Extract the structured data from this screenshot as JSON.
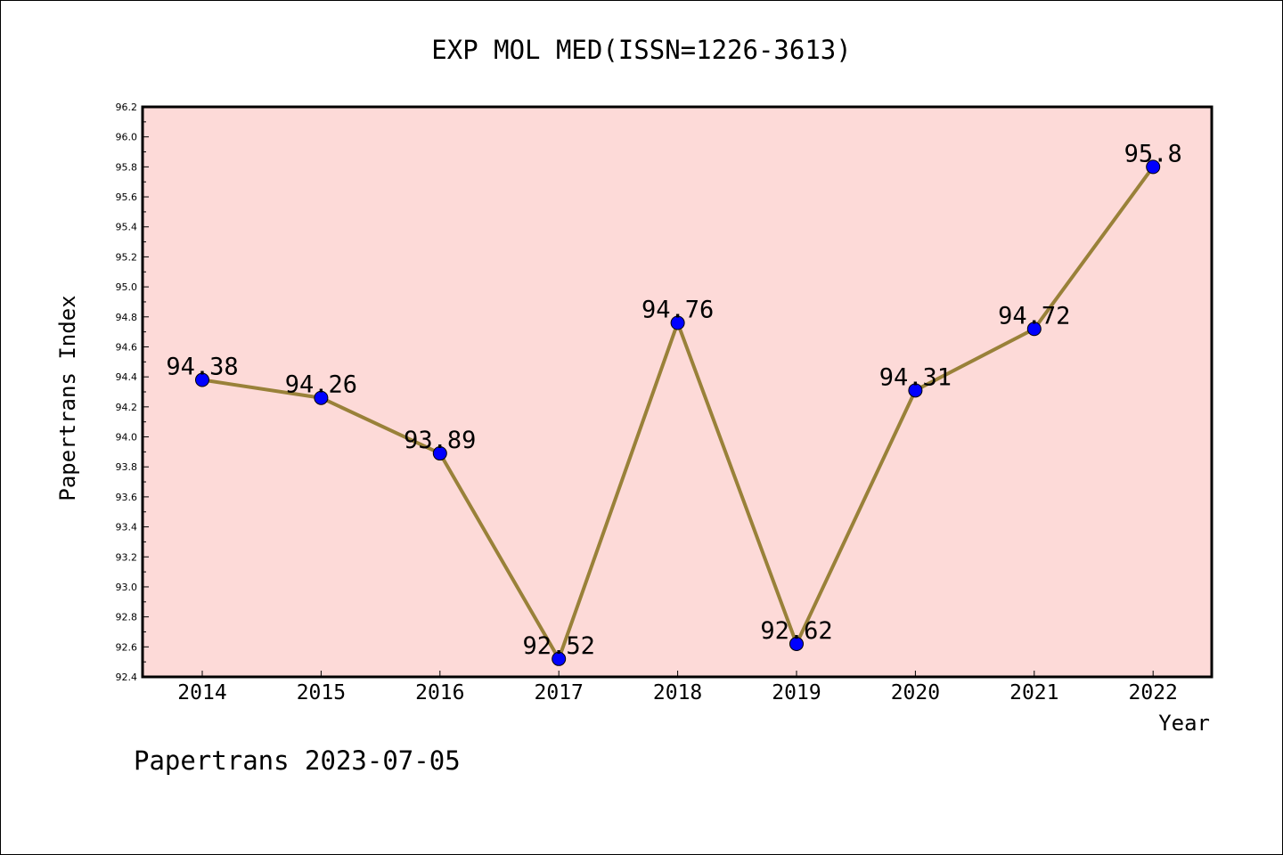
{
  "chart_data": {
    "type": "line",
    "title": "EXP MOL MED(ISSN=1226-3613)",
    "xlabel": "Year",
    "ylabel": "Papertrans Index",
    "categories": [
      "2014",
      "2015",
      "2016",
      "2017",
      "2018",
      "2019",
      "2020",
      "2021",
      "2022"
    ],
    "series": [
      {
        "values": [
          94.38,
          94.26,
          93.89,
          92.52,
          94.76,
          92.62,
          94.31,
          94.72,
          95.8
        ],
        "labels": [
          "94.38",
          "94.26",
          "93.89",
          "92.52",
          "94.76",
          "92.62",
          "94.31",
          "94.72",
          "95.8"
        ]
      }
    ],
    "ylim": [
      92.4,
      96.2
    ],
    "yticks": [
      "92.4",
      "92.6",
      "92.8",
      "93.0",
      "93.2",
      "93.4",
      "93.6",
      "93.8",
      "94.0",
      "94.2",
      "94.4",
      "94.6",
      "94.8",
      "95.0",
      "95.2",
      "95.4",
      "95.6",
      "95.8",
      "96.0",
      "96.2"
    ],
    "grid": false,
    "legend": "none",
    "colors": {
      "plot_background": "#fddad8",
      "line": "#998139",
      "marker": "#0000ff"
    }
  },
  "footer": "Papertrans 2023-07-05"
}
